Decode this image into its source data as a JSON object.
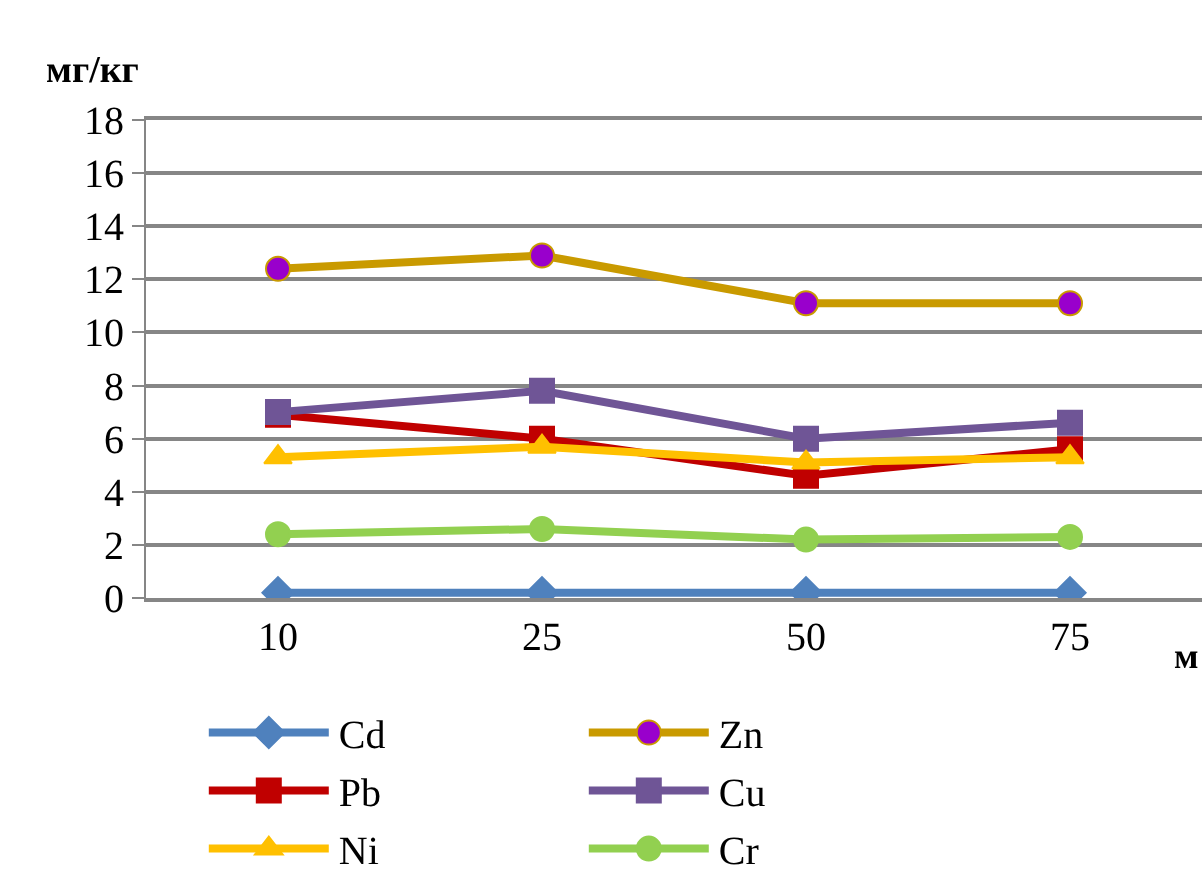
{
  "chart_data": {
    "type": "line",
    "ylabel": "мг/кг",
    "xlabel": "м",
    "categories": [
      "10",
      "25",
      "50",
      "75"
    ],
    "ylim": [
      0,
      18
    ],
    "yticks": [
      0,
      2,
      4,
      6,
      8,
      10,
      12,
      14,
      16,
      18
    ],
    "grid": "y",
    "legend": "bottom",
    "series": [
      {
        "name": "Cd",
        "color": "#4f81bd",
        "marker": "diamond",
        "values": [
          0.2,
          0.2,
          0.2,
          0.2
        ]
      },
      {
        "name": "Zn",
        "color": "#c99a00",
        "colors": [
          "#9900cc",
          "#9900cc",
          "#9900cc",
          "#9900cc"
        ],
        "marker": "circle",
        "values": [
          12.4,
          12.9,
          11.1,
          11.1
        ]
      },
      {
        "name": "Pb",
        "color": "#c00000",
        "marker": "square",
        "values": [
          6.9,
          6.0,
          4.6,
          5.6
        ]
      },
      {
        "name": "Cu",
        "color": "#6f5596",
        "marker": "square",
        "values": [
          7.0,
          7.8,
          6.0,
          6.6
        ]
      },
      {
        "name": "Ni",
        "color": "#ffc000",
        "marker": "triangle",
        "values": [
          5.3,
          5.7,
          5.1,
          5.3
        ]
      },
      {
        "name": "Cr",
        "color": "#92d050",
        "marker": "circle",
        "values": [
          2.4,
          2.6,
          2.2,
          2.3
        ]
      }
    ]
  }
}
